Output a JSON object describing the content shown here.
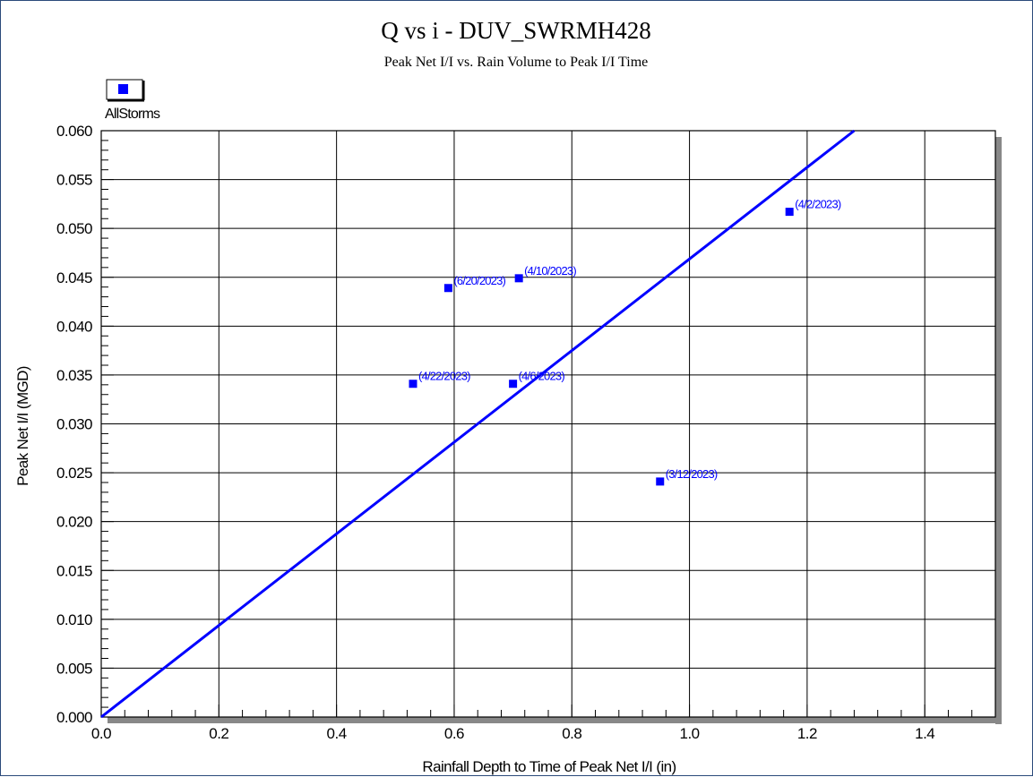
{
  "chart_data": {
    "type": "scatter",
    "title": "Q vs i - DUV_SWRMH428",
    "subtitle": "Peak Net I/I vs. Rain Volume to Peak I/I Time",
    "xlabel": "Rainfall Depth to Time of Peak Net I/I (in)",
    "ylabel": "Peak Net I/I (MGD)",
    "xlim": [
      0.0,
      1.52
    ],
    "ylim": [
      0.0,
      0.06
    ],
    "x_ticks": [
      "0.0",
      "0.2",
      "0.4",
      "0.6",
      "0.8",
      "1.0",
      "1.2",
      "1.4"
    ],
    "y_ticks": [
      "0.000",
      "0.005",
      "0.010",
      "0.015",
      "0.020",
      "0.025",
      "0.030",
      "0.035",
      "0.040",
      "0.045",
      "0.050",
      "0.055",
      "0.060"
    ],
    "grid": true,
    "legend_position": "top-left",
    "series": [
      {
        "name": "AllStorms",
        "color": "#0000ff",
        "points": [
          {
            "x": 1.17,
            "y": 0.0517,
            "label": "(4/2/2023)"
          },
          {
            "x": 0.71,
            "y": 0.0449,
            "label": "(4/10/2023)"
          },
          {
            "x": 0.59,
            "y": 0.0439,
            "label": "(6/20/2023)"
          },
          {
            "x": 0.53,
            "y": 0.0341,
            "label": "(4/22/2023)"
          },
          {
            "x": 0.7,
            "y": 0.0341,
            "label": "(4/6/2023)"
          },
          {
            "x": 0.95,
            "y": 0.0241,
            "label": "(3/12/2023)"
          }
        ]
      }
    ],
    "trendline": {
      "color": "#0000ff",
      "points": [
        {
          "x": 0.0,
          "y": 0.0
        },
        {
          "x": 1.28,
          "y": 0.06
        }
      ]
    }
  }
}
